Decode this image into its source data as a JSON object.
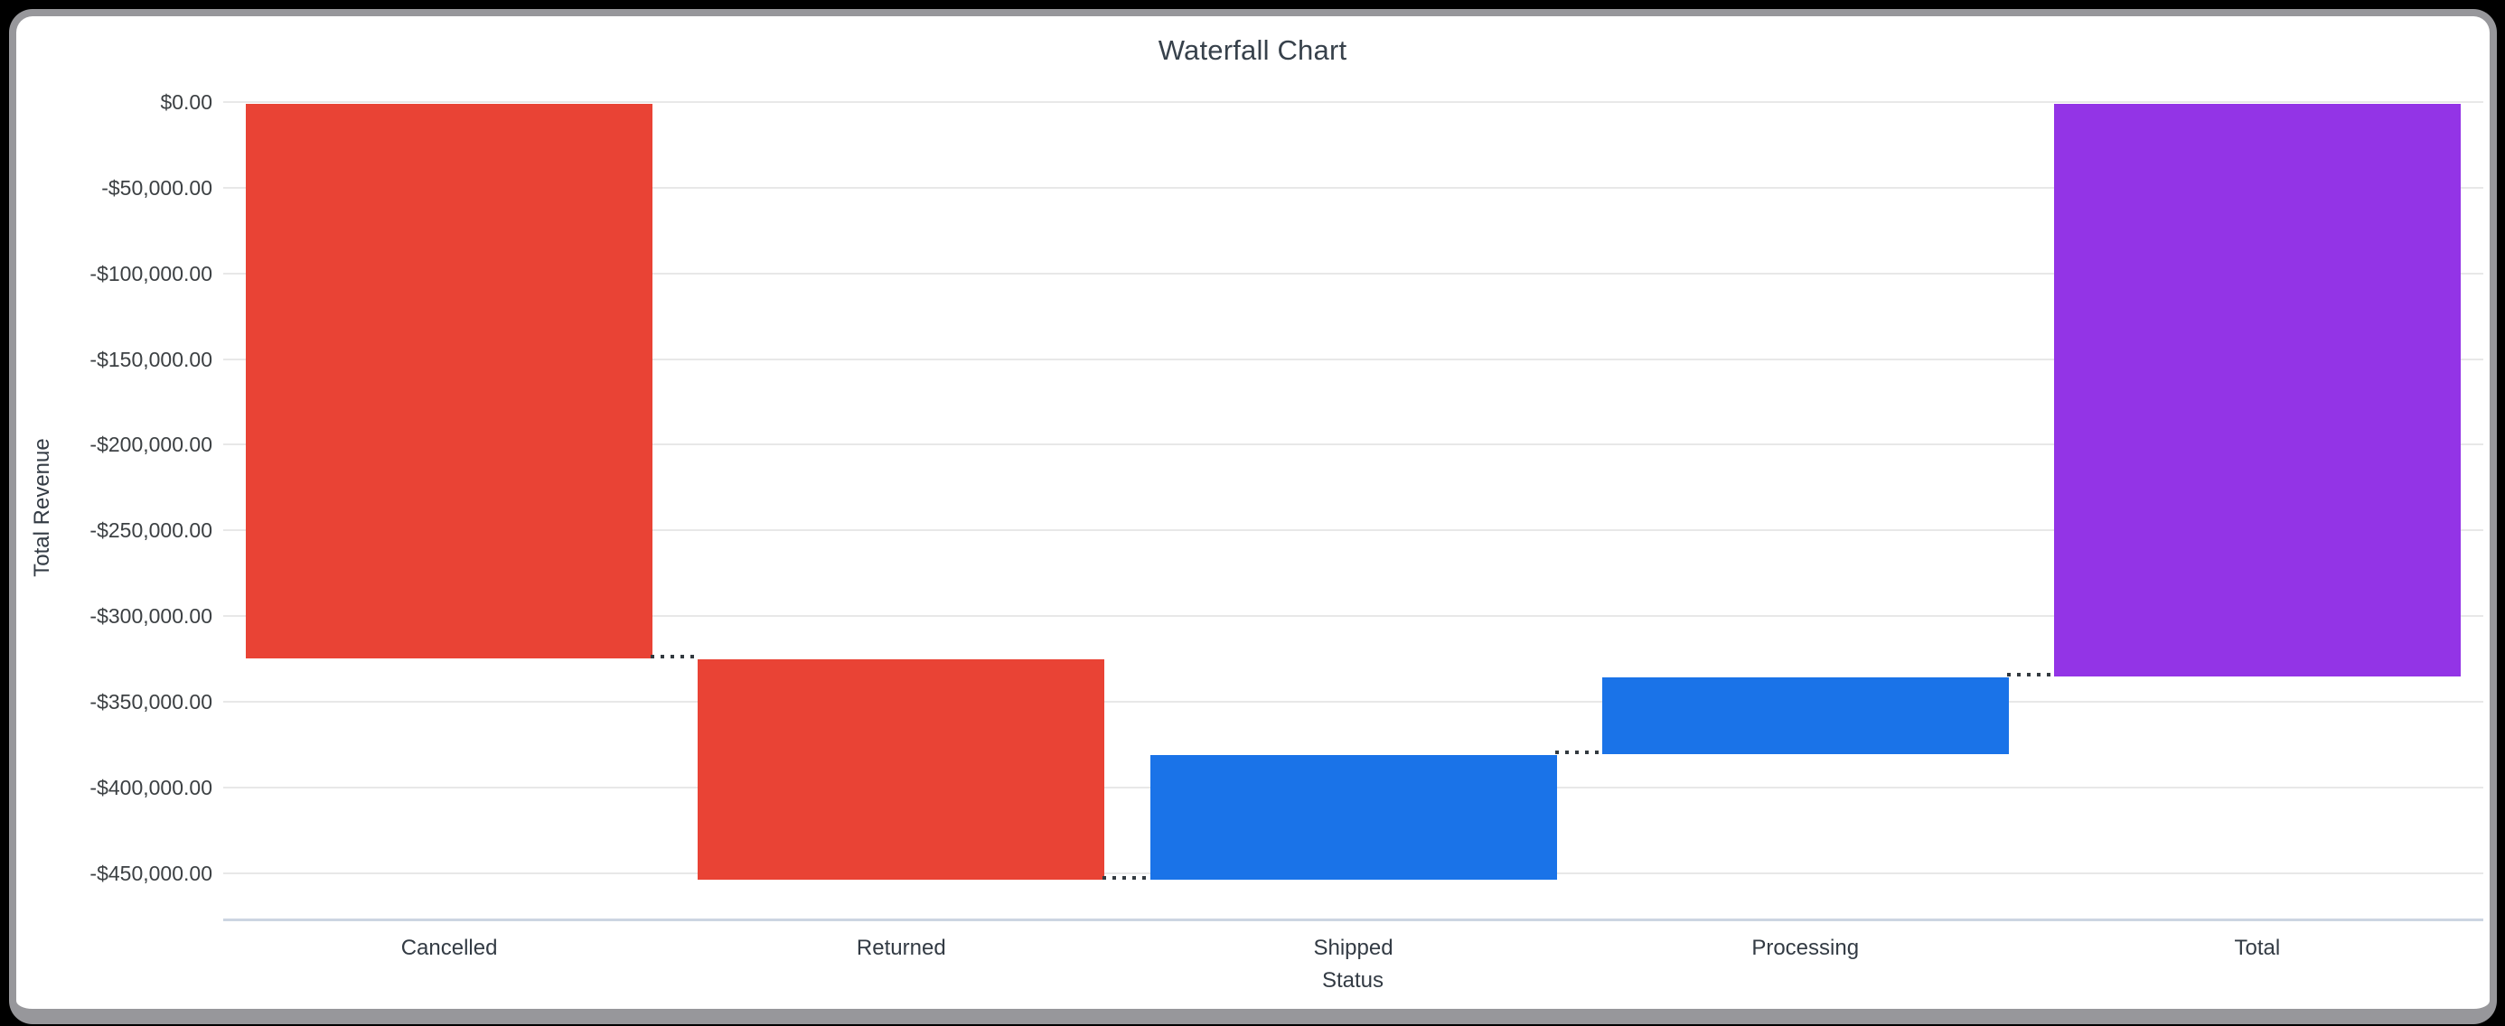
{
  "frame": {
    "outer_background": "#000000",
    "border_color": "#97979b",
    "card_background": "#ffffff"
  },
  "chart_data": {
    "type": "waterfall",
    "title": "Waterfall Chart",
    "xlabel": "Status",
    "ylabel": "Total Revenue",
    "categories": [
      "Cancelled",
      "Returned",
      "Shipped",
      "Processing",
      "Total"
    ],
    "steps": [
      {
        "label": "Cancelled",
        "delta": -324000,
        "start": 0,
        "end": -324000,
        "kind": "decrease"
      },
      {
        "label": "Returned",
        "delta": -129200,
        "start": -324000,
        "end": -453200,
        "kind": "decrease"
      },
      {
        "label": "Shipped",
        "delta": 73200,
        "start": -453200,
        "end": -380000,
        "kind": "increase"
      },
      {
        "label": "Processing",
        "delta": 45500,
        "start": -380000,
        "end": -334500,
        "kind": "increase"
      },
      {
        "label": "Total",
        "delta": -334500,
        "start": 0,
        "end": -334500,
        "kind": "total"
      }
    ],
    "y_ticks": [
      0,
      -50000,
      -100000,
      -150000,
      -200000,
      -250000,
      -300000,
      -350000,
      -400000,
      -450000
    ],
    "y_tick_labels": [
      "$0.00",
      "-$50,000.00",
      "-$100,000.00",
      "-$150,000.00",
      "-$200,000.00",
      "-$250,000.00",
      "-$300,000.00",
      "-$350,000.00",
      "-$400,000.00",
      "-$450,000.00"
    ],
    "ylim": [
      -476000,
      0
    ],
    "grid": true,
    "legend": "none",
    "connector_style": "dotted",
    "colors": {
      "decrease": "#e94335",
      "increase": "#1a73e8",
      "total": "#9334e6",
      "gridline": "#e8e8e8",
      "axis_line": "#ccd5e2",
      "connector": "#333a40",
      "tick_text": "#3c4043",
      "title_text": "#37414b"
    }
  }
}
